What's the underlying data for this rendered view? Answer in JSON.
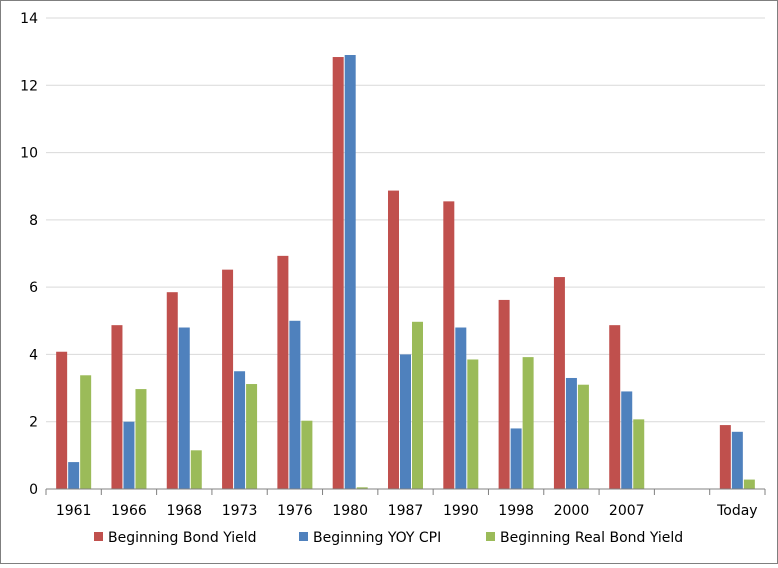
{
  "colors": {
    "bond_yield": "#c0504d",
    "yoy_cpi": "#4f81bd",
    "real_bond_yield": "#9bbb59",
    "gridline": "#d9d9d9",
    "axis": "#808080"
  },
  "chart_data": {
    "type": "bar",
    "title": "",
    "xlabel": "",
    "ylabel": "",
    "ylim": [
      0,
      14
    ],
    "yticks": [
      0,
      2,
      4,
      6,
      8,
      10,
      12,
      14
    ],
    "grid": true,
    "legend_position": "bottom",
    "categories": [
      "1961",
      "1966",
      "1968",
      "1973",
      "1976",
      "1980",
      "1987",
      "1990",
      "1998",
      "2000",
      "2007",
      "",
      "Today"
    ],
    "series": [
      {
        "name": "Beginning Bond Yield",
        "color": "#c0504d",
        "values": [
          4.08,
          4.87,
          5.85,
          6.52,
          6.93,
          12.84,
          8.87,
          8.55,
          5.62,
          6.3,
          4.87,
          null,
          1.9
        ]
      },
      {
        "name": "Beginning YOY CPI",
        "color": "#4f81bd",
        "values": [
          0.8,
          2.0,
          4.8,
          3.5,
          5.0,
          12.9,
          4.0,
          4.8,
          1.8,
          3.3,
          2.9,
          null,
          1.7
        ]
      },
      {
        "name": "Beginning Real Bond Yield",
        "color": "#9bbb59",
        "values": [
          3.38,
          2.97,
          1.15,
          3.12,
          2.03,
          0.05,
          4.97,
          3.85,
          3.92,
          3.1,
          2.07,
          null,
          0.28
        ]
      }
    ]
  }
}
